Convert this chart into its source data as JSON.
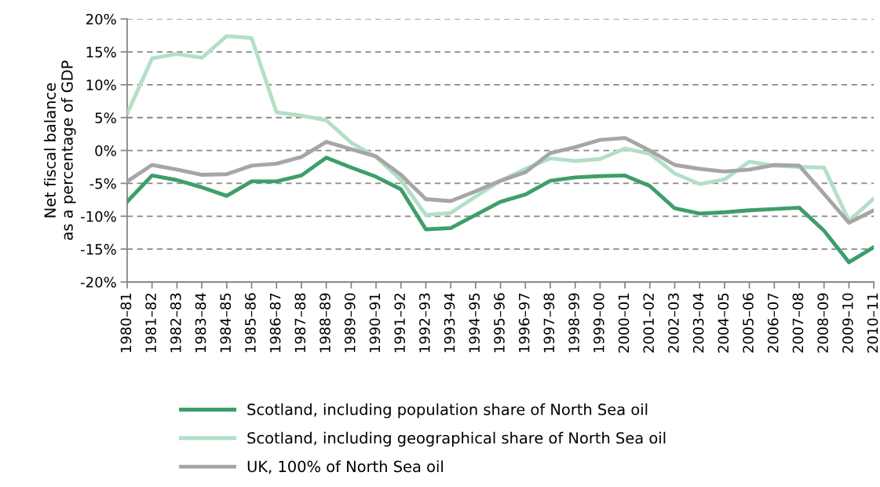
{
  "chart_data": {
    "type": "line",
    "ylabel": "Net fiscal balance\nas a percentage of GDP",
    "categories": [
      "1980–81",
      "1981–82",
      "1982–83",
      "1983–84",
      "1984–85",
      "1985–86",
      "1986–87",
      "1987–88",
      "1988–89",
      "1989–90",
      "1990–91",
      "1991–92",
      "1992–93",
      "1993–94",
      "1994–95",
      "1995–96",
      "1996–97",
      "1997–98",
      "1998–99",
      "1999–00",
      "2000–01",
      "2001–02",
      "2002–03",
      "2003–04",
      "2004–05",
      "2005–06",
      "2006–07",
      "2007–08",
      "2008–09",
      "2009–10",
      "2010–11"
    ],
    "series": [
      {
        "name": "Scotland, including population share of North Sea oil",
        "color": "#3e9e6a",
        "values": [
          -7.8,
          -3.8,
          -4.5,
          -5.6,
          -6.9,
          -4.7,
          -4.7,
          -3.8,
          -1.1,
          -2.6,
          -4.0,
          -5.9,
          -12.0,
          -11.8,
          -9.8,
          -7.8,
          -6.7,
          -4.6,
          -4.1,
          -3.9,
          -3.8,
          -5.4,
          -8.8,
          -9.6,
          -9.4,
          -9.1,
          -8.9,
          -8.7,
          -12.2,
          -17.0,
          -14.7
        ]
      },
      {
        "name": "Scotland, including geographical share of North Sea oil",
        "color": "#b2e0c6",
        "values": [
          5.6,
          14.0,
          14.7,
          14.1,
          17.4,
          17.1,
          5.8,
          5.3,
          4.6,
          1.2,
          -1.0,
          -4.5,
          -9.8,
          -9.5,
          -7.0,
          -4.6,
          -2.8,
          -1.2,
          -1.6,
          -1.3,
          0.3,
          -0.5,
          -3.5,
          -5.1,
          -4.4,
          -1.7,
          -2.3,
          -2.5,
          -2.6,
          -10.7,
          -7.3
        ]
      },
      {
        "name": "UK, 100% of North Sea oil",
        "color": "#a6a6a6",
        "values": [
          -4.7,
          -2.2,
          -2.9,
          -3.7,
          -3.6,
          -2.3,
          -2.0,
          -1.0,
          1.3,
          0.2,
          -0.9,
          -3.7,
          -7.4,
          -7.7,
          -6.2,
          -4.6,
          -3.3,
          -0.4,
          0.5,
          1.6,
          1.9,
          0.0,
          -2.2,
          -2.8,
          -3.2,
          -2.9,
          -2.2,
          -2.3,
          -6.6,
          -11.0,
          -9.1
        ]
      }
    ],
    "ylim": [
      -20,
      20
    ],
    "yticks": [
      {
        "value": -20,
        "label": "-20%"
      },
      {
        "value": -15,
        "label": "-15%"
      },
      {
        "value": -10,
        "label": "-10%"
      },
      {
        "value": -5,
        "label": "-5%"
      },
      {
        "value": 0,
        "label": "0%"
      },
      {
        "value": 5,
        "label": "5%"
      },
      {
        "value": 10,
        "label": "10%"
      },
      {
        "value": 15,
        "label": "15%"
      },
      {
        "value": 20,
        "label": "20%"
      }
    ],
    "grid": "y",
    "legend": "bottom",
    "marker": "none",
    "line_style": "solid"
  }
}
